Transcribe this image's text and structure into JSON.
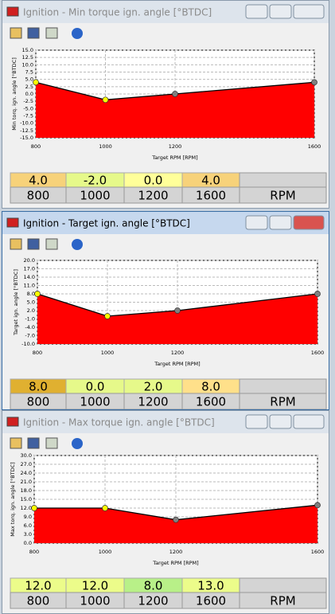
{
  "windows": [
    {
      "title": "Ignition - Min torque ign. angle [°BTDC]",
      "active": false,
      "chart_data": {
        "type": "area",
        "x_label": "Target RPM [RPM]",
        "y_label": "Min torq. ign. angle [°BTDC]",
        "x": [
          800,
          1000,
          1200,
          1600
        ],
        "xlim": [
          800,
          1600
        ],
        "xticks": [
          800,
          1000,
          1200,
          1600
        ],
        "ylim": [
          -15,
          15
        ],
        "yticks": [
          {
            "value": -15,
            "label": "-15.0"
          },
          {
            "value": -12.5,
            "label": "-12.5"
          },
          {
            "value": -10,
            "label": "-10.0"
          },
          {
            "value": -7.5,
            "label": "-7.5"
          },
          {
            "value": -5,
            "label": "-5.0"
          },
          {
            "value": -2.5,
            "label": "-2.5"
          },
          {
            "value": 0,
            "label": "0.0"
          },
          {
            "value": 2.5,
            "label": "2.5"
          },
          {
            "value": 5,
            "label": "5.0"
          },
          {
            "value": 7.5,
            "label": "7.5"
          },
          {
            "value": 10,
            "label": "10.0"
          },
          {
            "value": 12.5,
            "label": "12.5"
          },
          {
            "value": 15,
            "label": "15.0"
          }
        ],
        "values": [
          4,
          -2,
          0,
          4
        ],
        "value_labels": [
          "4.0",
          "-2.0",
          "0.0",
          "4.0"
        ],
        "color": "#ff0000",
        "line_color": "#000000",
        "marker_colors": [
          "#ffff00",
          "#ffff00",
          "#808080",
          "#808080"
        ],
        "grid": true
      },
      "table": {
        "cell_colors": [
          "#f7d27a",
          "#e6f98a",
          "#ffff99",
          "#f7d27a"
        ],
        "unit": "RPM"
      }
    },
    {
      "title": "Ignition - Target ign. angle [°BTDC]",
      "active": true,
      "chart_data": {
        "type": "area",
        "x_label": "Target RPM [RPM]",
        "y_label": "Target ign. angle [°BTDC]",
        "x": [
          800,
          1000,
          1200,
          1600
        ],
        "xlim": [
          800,
          1600
        ],
        "xticks": [
          800,
          1000,
          1200,
          1600
        ],
        "ylim": [
          -10,
          20
        ],
        "yticks": [
          {
            "value": -10,
            "label": "-10.0"
          },
          {
            "value": -7,
            "label": "-7.0"
          },
          {
            "value": -4,
            "label": "-4.0"
          },
          {
            "value": -1,
            "label": "-1.0"
          },
          {
            "value": 2,
            "label": "2.0"
          },
          {
            "value": 5,
            "label": "5.0"
          },
          {
            "value": 8,
            "label": "8.0"
          },
          {
            "value": 11,
            "label": "11.0"
          },
          {
            "value": 14,
            "label": "14.0"
          },
          {
            "value": 17,
            "label": "17.0"
          },
          {
            "value": 20,
            "label": "20.0"
          }
        ],
        "values": [
          8,
          0,
          2,
          8
        ],
        "value_labels": [
          "8.0",
          "0.0",
          "2.0",
          "8.0"
        ],
        "color": "#ff0000",
        "line_color": "#000000",
        "marker_colors": [
          "#ffff00",
          "#ffff00",
          "#808080",
          "#808080"
        ],
        "grid": true
      },
      "table": {
        "cell_colors": [
          "#e0b030",
          "#e6f98a",
          "#e6f98a",
          "#ffe08a"
        ],
        "unit": "RPM"
      }
    },
    {
      "title": "Ignition - Max torque ign. angle [°BTDC]",
      "active": false,
      "chart_data": {
        "type": "area",
        "x_label": "Target RPM [RPM]",
        "y_label": "Max torq. ign. angle [°BTDC]",
        "x": [
          800,
          1000,
          1200,
          1600
        ],
        "xlim": [
          800,
          1600
        ],
        "xticks": [
          800,
          1000,
          1200,
          1600
        ],
        "ylim": [
          0,
          30
        ],
        "yticks": [
          {
            "value": 0,
            "label": "0.0"
          },
          {
            "value": 3,
            "label": "3.0"
          },
          {
            "value": 6,
            "label": "6.0"
          },
          {
            "value": 9,
            "label": "9.0"
          },
          {
            "value": 12,
            "label": "12.0"
          },
          {
            "value": 15,
            "label": "15.0"
          },
          {
            "value": 18,
            "label": "18.0"
          },
          {
            "value": 21,
            "label": "21.0"
          },
          {
            "value": 24,
            "label": "24.0"
          },
          {
            "value": 27,
            "label": "27.0"
          },
          {
            "value": 30,
            "label": "30.0"
          }
        ],
        "values": [
          12,
          12,
          8,
          13
        ],
        "value_labels": [
          "12.0",
          "12.0",
          "8.0",
          "13.0"
        ],
        "color": "#ff0000",
        "line_color": "#000000",
        "marker_colors": [
          "#ffff00",
          "#ffff00",
          "#808080",
          "#808080"
        ],
        "grid": true
      },
      "table": {
        "cell_colors": [
          "#ecfc8a",
          "#ecfc8a",
          "#b8f088",
          "#ecfc8a"
        ],
        "unit": "RPM"
      }
    }
  ]
}
